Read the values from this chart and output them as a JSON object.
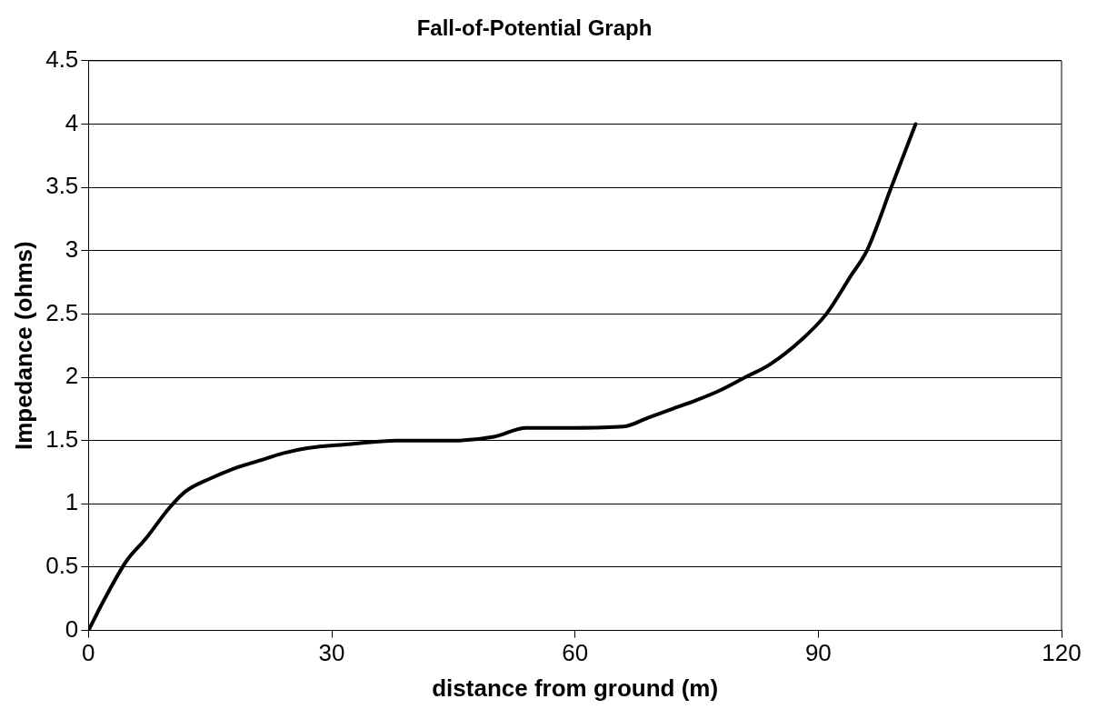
{
  "chart_data": {
    "type": "line",
    "title": "Fall-of-Potential Graph",
    "xlabel": "distance from ground (m)",
    "ylabel": "Impedance (ohms)",
    "x": [
      0,
      2,
      4.7,
      7,
      10,
      12,
      15,
      18,
      21,
      24,
      27,
      32,
      38,
      45,
      50,
      54,
      60,
      66,
      69,
      72,
      75,
      78,
      81,
      84,
      88,
      91,
      94,
      96,
      99,
      102
    ],
    "series": [
      {
        "color": "#000000",
        "values": [
          0,
          0.25,
          0.55,
          0.72,
          0.97,
          1.1,
          1.2,
          1.28,
          1.34,
          1.4,
          1.44,
          1.47,
          1.5,
          1.5,
          1.53,
          1.6,
          1.6,
          1.61,
          1.68,
          1.75,
          1.82,
          1.9,
          2.0,
          2.1,
          2.3,
          2.5,
          2.8,
          3.0,
          3.5,
          4.0
        ]
      }
    ],
    "xlim": [
      0,
      120
    ],
    "xticks": [
      0,
      30,
      60,
      90,
      120
    ],
    "ylim": [
      0,
      4.5
    ],
    "yticks": [
      0,
      0.5,
      1,
      1.5,
      2,
      2.5,
      3,
      3.5,
      4,
      4.5
    ],
    "grid": "y",
    "legend": false,
    "marker": "none",
    "line_style": "solid"
  }
}
